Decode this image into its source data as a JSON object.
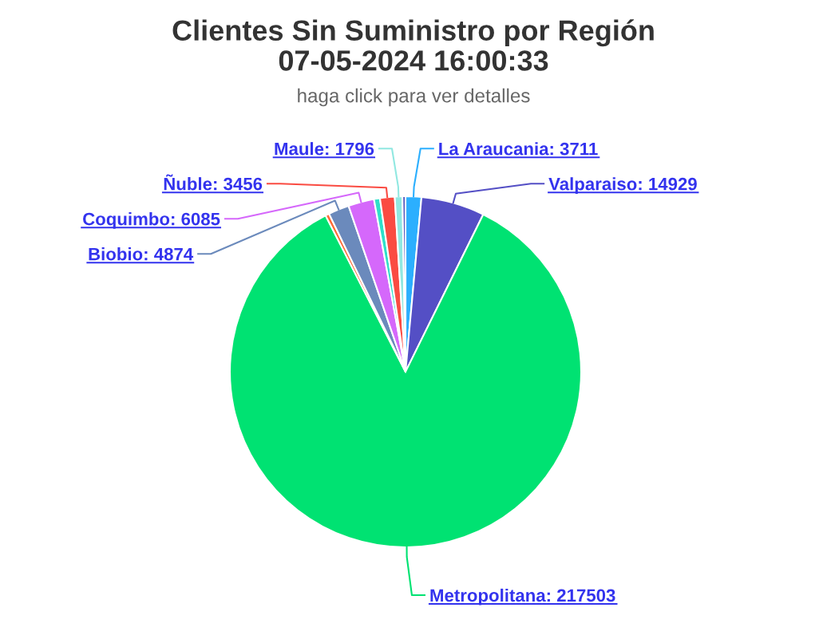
{
  "chart_data": {
    "type": "pie",
    "title": "Clientes Sin Suministro por Región\n07-05-2024 16:00:33",
    "subtitle": "haga click para ver detalles",
    "categories": [
      "La Araucania",
      "Valparaiso",
      "Metropolitana",
      null,
      "Biobio",
      "Coquimbo",
      null,
      "Ñuble",
      "Maule",
      null
    ],
    "values": [
      3711,
      14929,
      217503,
      900,
      4874,
      6085,
      1400,
      3456,
      1796,
      700
    ],
    "value_labels": [
      "3711",
      "14929",
      "217503",
      null,
      "4874",
      "6085",
      null,
      "3456",
      "1796",
      null
    ],
    "colors": [
      "#2caffe",
      "#544fc5",
      "#00e272",
      "#fe6a35",
      "#6b8abc",
      "#d568fb",
      "#2ee0ca",
      "#fa4b42",
      "#91e8e1",
      "#4a4ab8"
    ]
  }
}
